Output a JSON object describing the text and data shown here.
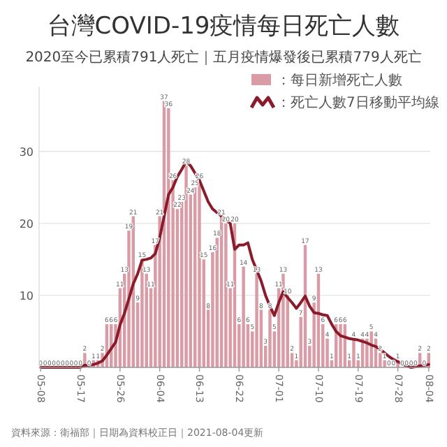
{
  "chart_data": {
    "type": "bar",
    "title": "台灣COVID-19疫情每日死亡人數",
    "subtitle": "2020至今已累積791人死亡｜五月疫情爆發後已累積779人死亡",
    "categories": [
      "05-08",
      null,
      null,
      null,
      null,
      null,
      null,
      null,
      null,
      "05-17",
      null,
      null,
      null,
      null,
      null,
      null,
      null,
      null,
      "05-26",
      null,
      null,
      null,
      null,
      null,
      null,
      null,
      null,
      "06-04",
      null,
      null,
      null,
      null,
      null,
      null,
      null,
      null,
      "06-13",
      null,
      null,
      null,
      null,
      null,
      null,
      null,
      null,
      "06-22",
      null,
      null,
      null,
      null,
      null,
      null,
      null,
      null,
      "07-01",
      null,
      null,
      null,
      null,
      null,
      null,
      null,
      null,
      "07-10",
      null,
      null,
      null,
      null,
      null,
      null,
      null,
      null,
      "07-19",
      null,
      null,
      null,
      null,
      null,
      null,
      null,
      null,
      "07-28",
      null,
      null,
      null,
      null,
      null,
      null,
      "08-04"
    ],
    "series": [
      {
        "name": "：每日新增死亡人數",
        "color": "#d99ba5",
        "values": [
          0,
          0,
          0,
          0,
          0,
          0,
          0,
          0,
          0,
          0,
          2,
          0,
          1,
          1,
          2,
          6,
          6,
          6,
          11,
          13,
          19,
          21,
          9,
          15,
          13,
          11,
          17,
          21,
          37,
          36,
          26,
          22,
          23,
          28,
          24,
          25,
          26,
          15,
          8,
          16,
          18,
          21,
          20,
          11,
          20,
          6,
          14,
          6,
          5,
          13,
          8,
          3,
          8,
          5,
          11,
          13,
          10,
          2,
          1,
          7,
          17,
          3,
          9,
          13,
          6,
          4,
          1,
          6,
          6,
          6,
          1,
          4,
          1,
          4,
          4,
          5,
          4,
          2,
          1,
          0,
          0,
          1,
          0,
          0,
          0,
          0,
          2,
          0,
          2
        ],
        "value_labels": [
          "0",
          "0",
          "0",
          "0",
          "0",
          "0",
          "0",
          "0",
          "0",
          "0",
          "2",
          "0",
          "1",
          "1",
          "2",
          "6",
          "6",
          "6",
          "11",
          "13",
          "19",
          "21",
          "9",
          "15",
          "13",
          "11",
          "17",
          "21",
          "37",
          "36",
          "26",
          "22",
          "23",
          "28",
          "24",
          "25",
          "26",
          "15",
          "8",
          "16",
          "18",
          "21",
          "20",
          "11",
          "20",
          "6",
          "14",
          "6",
          "5",
          "13",
          "8",
          "3",
          "8",
          "5",
          "11",
          "13",
          "10",
          "2",
          "1",
          "7",
          "17",
          "3",
          "9",
          "13",
          "6",
          "4",
          "1",
          "6",
          "6",
          "6",
          "1",
          "4",
          "1",
          "4",
          "4",
          "5",
          "4",
          "2",
          "1",
          "0",
          "0",
          "1",
          "0",
          "0",
          "0",
          "0",
          "2",
          "0",
          "2"
        ]
      },
      {
        "name": "：死亡人數7日移動平均線",
        "type": "line",
        "color": "#8b1a2b",
        "values": [
          0,
          0,
          0,
          0,
          0,
          0,
          0,
          0,
          0,
          0,
          0.3,
          0.3,
          0.4,
          0.6,
          0.9,
          1.7,
          2.6,
          3.5,
          5.9,
          7.5,
          9.5,
          11.6,
          13,
          14.9,
          15,
          15.2,
          15.8,
          18,
          21,
          24,
          25,
          26.5,
          27.5,
          28.6,
          28,
          27,
          26,
          24.5,
          23,
          22,
          21.5,
          21,
          20.5,
          20,
          16.4,
          17,
          17,
          17.3,
          15,
          13.5,
          12,
          10,
          8.5,
          7.2,
          9,
          10.5,
          9.7,
          9,
          8.2,
          9,
          9.9,
          8.5,
          7.6,
          7.5,
          7.3,
          7.2,
          6,
          5,
          4.4,
          4.2,
          4,
          3.9,
          3.8,
          3.6,
          3.4,
          3.1,
          2.9,
          2.5,
          2,
          1.5,
          1.1,
          0.8,
          0.5,
          0.2,
          0,
          0.1,
          0.2,
          0.3,
          0.4
        ]
      }
    ],
    "ylim": [
      0,
      39
    ],
    "yticks": [
      10,
      20,
      30
    ],
    "grid": "y",
    "legend": "top right",
    "annotations": [
      "資料來源：衛福部｜日期為資料校正日｜2021-08-04更新"
    ]
  }
}
